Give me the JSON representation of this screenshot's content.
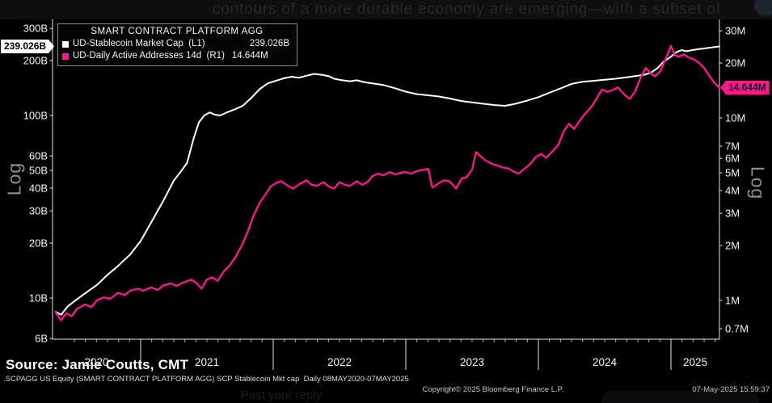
{
  "tweet": {
    "text_fragment": "contours of a more durable economy are emerging—with a subset of",
    "reply_placeholder": "Post your reply"
  },
  "legend": {
    "title": "SMART CONTRACT PLATFORM AGG",
    "series": [
      {
        "label": "UD-Stablecoin Market Cap  (L1)",
        "value": "239.026B",
        "color": "#ffffff"
      },
      {
        "label": "UD-Daily Active Addresses 14d  (R1)",
        "value": "14.644M",
        "color": "#f5198c"
      }
    ]
  },
  "scale_labels": {
    "left": "Log",
    "right": "Log"
  },
  "source_line": "Source: Jamie Coutts, CMT",
  "footer": {
    "ticker_line": ".SCPAGG US Equity (SMART CONTRACT PLATFORM AGG) SCP Stablecoin Mkt cap  Daily 08MAY2020-07MAY2025",
    "copyright": "Copyright© 2025 Bloomberg Finance L.P.",
    "timestamp": "07-May-2025 15:59:37"
  },
  "colors": {
    "background": "#000000",
    "axis": "#e6e6e6",
    "stablecoin_line": "#ffffff",
    "addresses_line": "#f5198c"
  },
  "chart_data": {
    "type": "line",
    "title": "SMART CONTRACT PLATFORM AGG",
    "scale": "log",
    "x_axis": {
      "ticks": [
        2020,
        2021,
        2022,
        2023,
        2024,
        2025
      ],
      "range_decimal_years": [
        2020.35,
        2025.38
      ]
    },
    "left_axis": {
      "label": "Log",
      "unit": "B USD",
      "current_value": "239.026B",
      "tick_labels": [
        "300B",
        "200B",
        "100B",
        "60B",
        "50B",
        "40B",
        "30B",
        "20B",
        "10B",
        "6B"
      ],
      "tick_values": [
        300,
        200,
        100,
        60,
        50,
        40,
        30,
        20,
        10,
        6
      ]
    },
    "right_axis": {
      "label": "Log",
      "unit": "M addresses",
      "current_value": "14.644M",
      "tick_labels": [
        "30M",
        "20M",
        "10M",
        "7M",
        "6M",
        "5M",
        "4M",
        "3M",
        "2M",
        "1M",
        "0.7M"
      ],
      "tick_values": [
        30,
        20,
        10,
        7,
        6,
        5,
        4,
        3,
        2,
        1,
        0.7
      ]
    },
    "series": [
      {
        "id": "stablecoin-market-cap",
        "name": "UD-Stablecoin Market Cap (L1)",
        "axis": "left",
        "unit": "billions USD",
        "color": "#ffffff",
        "width": 2,
        "points": [
          [
            2020.36,
            8.4
          ],
          [
            2020.4,
            8.1
          ],
          [
            2020.45,
            9.0
          ],
          [
            2020.5,
            9.6
          ],
          [
            2020.58,
            10.6
          ],
          [
            2020.67,
            11.8
          ],
          [
            2020.75,
            13.4
          ],
          [
            2020.83,
            15.0
          ],
          [
            2020.92,
            17.3
          ],
          [
            2021.0,
            20.5
          ],
          [
            2021.08,
            26
          ],
          [
            2021.17,
            34
          ],
          [
            2021.25,
            44
          ],
          [
            2021.31,
            50
          ],
          [
            2021.35,
            55
          ],
          [
            2021.4,
            75
          ],
          [
            2021.44,
            92
          ],
          [
            2021.48,
            100
          ],
          [
            2021.52,
            104
          ],
          [
            2021.56,
            101
          ],
          [
            2021.6,
            100
          ],
          [
            2021.65,
            104
          ],
          [
            2021.71,
            108
          ],
          [
            2021.77,
            113
          ],
          [
            2021.83,
            124
          ],
          [
            2021.9,
            140
          ],
          [
            2021.96,
            150
          ],
          [
            2022.02,
            155
          ],
          [
            2022.08,
            160
          ],
          [
            2022.14,
            163
          ],
          [
            2022.19,
            161
          ],
          [
            2022.25,
            165
          ],
          [
            2022.31,
            169
          ],
          [
            2022.37,
            167
          ],
          [
            2022.42,
            164
          ],
          [
            2022.46,
            159
          ],
          [
            2022.52,
            156
          ],
          [
            2022.58,
            154
          ],
          [
            2022.63,
            156
          ],
          [
            2022.69,
            152
          ],
          [
            2022.75,
            150
          ],
          [
            2022.83,
            147
          ],
          [
            2022.92,
            141
          ],
          [
            2023.0,
            135
          ],
          [
            2023.08,
            131
          ],
          [
            2023.17,
            129
          ],
          [
            2023.25,
            127
          ],
          [
            2023.33,
            124
          ],
          [
            2023.42,
            120
          ],
          [
            2023.5,
            118
          ],
          [
            2023.58,
            116
          ],
          [
            2023.67,
            114
          ],
          [
            2023.75,
            113
          ],
          [
            2023.83,
            116
          ],
          [
            2023.92,
            121
          ],
          [
            2024.0,
            126
          ],
          [
            2024.08,
            133
          ],
          [
            2024.17,
            141
          ],
          [
            2024.25,
            149
          ],
          [
            2024.33,
            153
          ],
          [
            2024.42,
            155
          ],
          [
            2024.5,
            157
          ],
          [
            2024.58,
            159
          ],
          [
            2024.67,
            162
          ],
          [
            2024.75,
            165
          ],
          [
            2024.81,
            168
          ],
          [
            2024.85,
            172
          ],
          [
            2024.9,
            182
          ],
          [
            2024.94,
            196
          ],
          [
            2025.0,
            210
          ],
          [
            2025.04,
            222
          ],
          [
            2025.08,
            228
          ],
          [
            2025.12,
            225
          ],
          [
            2025.17,
            229
          ],
          [
            2025.25,
            233
          ],
          [
            2025.33,
            237
          ],
          [
            2025.38,
            239.026
          ]
        ]
      },
      {
        "id": "daily-active-addresses",
        "name": "UD-Daily Active Addresses 14d (R1)",
        "axis": "right",
        "unit": "millions",
        "color": "#f5198c",
        "width": 2.4,
        "points": [
          [
            2020.36,
            0.86
          ],
          [
            2020.4,
            0.78
          ],
          [
            2020.44,
            0.85
          ],
          [
            2020.48,
            0.82
          ],
          [
            2020.52,
            0.9
          ],
          [
            2020.58,
            0.95
          ],
          [
            2020.63,
            0.92
          ],
          [
            2020.67,
            1.0
          ],
          [
            2020.72,
            1.04
          ],
          [
            2020.77,
            1.02
          ],
          [
            2020.83,
            1.1
          ],
          [
            2020.88,
            1.07
          ],
          [
            2020.92,
            1.13
          ],
          [
            2020.98,
            1.16
          ],
          [
            2021.02,
            1.13
          ],
          [
            2021.08,
            1.18
          ],
          [
            2021.13,
            1.14
          ],
          [
            2021.17,
            1.21
          ],
          [
            2021.23,
            1.24
          ],
          [
            2021.27,
            1.2
          ],
          [
            2021.33,
            1.26
          ],
          [
            2021.38,
            1.3
          ],
          [
            2021.42,
            1.25
          ],
          [
            2021.46,
            1.16
          ],
          [
            2021.5,
            1.3
          ],
          [
            2021.54,
            1.34
          ],
          [
            2021.58,
            1.28
          ],
          [
            2021.63,
            1.45
          ],
          [
            2021.67,
            1.55
          ],
          [
            2021.72,
            1.75
          ],
          [
            2021.77,
            2.05
          ],
          [
            2021.81,
            2.4
          ],
          [
            2021.85,
            2.9
          ],
          [
            2021.9,
            3.45
          ],
          [
            2021.94,
            3.8
          ],
          [
            2021.98,
            4.2
          ],
          [
            2022.02,
            4.4
          ],
          [
            2022.06,
            4.5
          ],
          [
            2022.1,
            4.3
          ],
          [
            2022.15,
            4.1
          ],
          [
            2022.2,
            4.35
          ],
          [
            2022.25,
            4.55
          ],
          [
            2022.29,
            4.3
          ],
          [
            2022.33,
            4.25
          ],
          [
            2022.38,
            4.45
          ],
          [
            2022.42,
            4.2
          ],
          [
            2022.46,
            4.1
          ],
          [
            2022.5,
            4.45
          ],
          [
            2022.54,
            4.3
          ],
          [
            2022.58,
            4.25
          ],
          [
            2022.63,
            4.5
          ],
          [
            2022.67,
            4.3
          ],
          [
            2022.71,
            4.45
          ],
          [
            2022.75,
            4.8
          ],
          [
            2022.79,
            4.95
          ],
          [
            2022.83,
            4.85
          ],
          [
            2022.88,
            5.05
          ],
          [
            2022.92,
            4.9
          ],
          [
            2022.96,
            5.0
          ],
          [
            2023.0,
            5.05
          ],
          [
            2023.04,
            4.95
          ],
          [
            2023.08,
            5.1
          ],
          [
            2023.13,
            5.2
          ],
          [
            2023.17,
            5.25
          ],
          [
            2023.2,
            4.15
          ],
          [
            2023.25,
            4.4
          ],
          [
            2023.29,
            4.55
          ],
          [
            2023.33,
            4.5
          ],
          [
            2023.38,
            4.1
          ],
          [
            2023.42,
            4.65
          ],
          [
            2023.46,
            4.75
          ],
          [
            2023.5,
            5.2
          ],
          [
            2023.53,
            6.5
          ],
          [
            2023.56,
            6.2
          ],
          [
            2023.6,
            5.85
          ],
          [
            2023.65,
            5.6
          ],
          [
            2023.69,
            5.5
          ],
          [
            2023.73,
            5.35
          ],
          [
            2023.77,
            5.3
          ],
          [
            2023.81,
            5.1
          ],
          [
            2023.85,
            4.95
          ],
          [
            2023.9,
            5.3
          ],
          [
            2023.94,
            5.6
          ],
          [
            2023.98,
            6.1
          ],
          [
            2024.02,
            6.35
          ],
          [
            2024.06,
            6.05
          ],
          [
            2024.1,
            6.5
          ],
          [
            2024.15,
            7.1
          ],
          [
            2024.19,
            8.4
          ],
          [
            2024.23,
            9.3
          ],
          [
            2024.27,
            8.7
          ],
          [
            2024.31,
            9.6
          ],
          [
            2024.35,
            10.5
          ],
          [
            2024.4,
            11.5
          ],
          [
            2024.44,
            12.8
          ],
          [
            2024.48,
            14.3
          ],
          [
            2024.52,
            13.9
          ],
          [
            2024.56,
            14.2
          ],
          [
            2024.6,
            14.7
          ],
          [
            2024.65,
            13.4
          ],
          [
            2024.69,
            12.7
          ],
          [
            2024.73,
            14.0
          ],
          [
            2024.77,
            16.5
          ],
          [
            2024.81,
            18.8
          ],
          [
            2024.85,
            17.5
          ],
          [
            2024.88,
            16.9
          ],
          [
            2024.92,
            18.0
          ],
          [
            2024.96,
            21.0
          ],
          [
            2025.0,
            24.8
          ],
          [
            2025.03,
            22.1
          ],
          [
            2025.06,
            21.7
          ],
          [
            2025.1,
            22.3
          ],
          [
            2025.13,
            21.5
          ],
          [
            2025.17,
            21.0
          ],
          [
            2025.21,
            20.1
          ],
          [
            2025.25,
            18.8
          ],
          [
            2025.29,
            17.0
          ],
          [
            2025.33,
            15.5
          ],
          [
            2025.38,
            14.644
          ]
        ]
      }
    ]
  }
}
